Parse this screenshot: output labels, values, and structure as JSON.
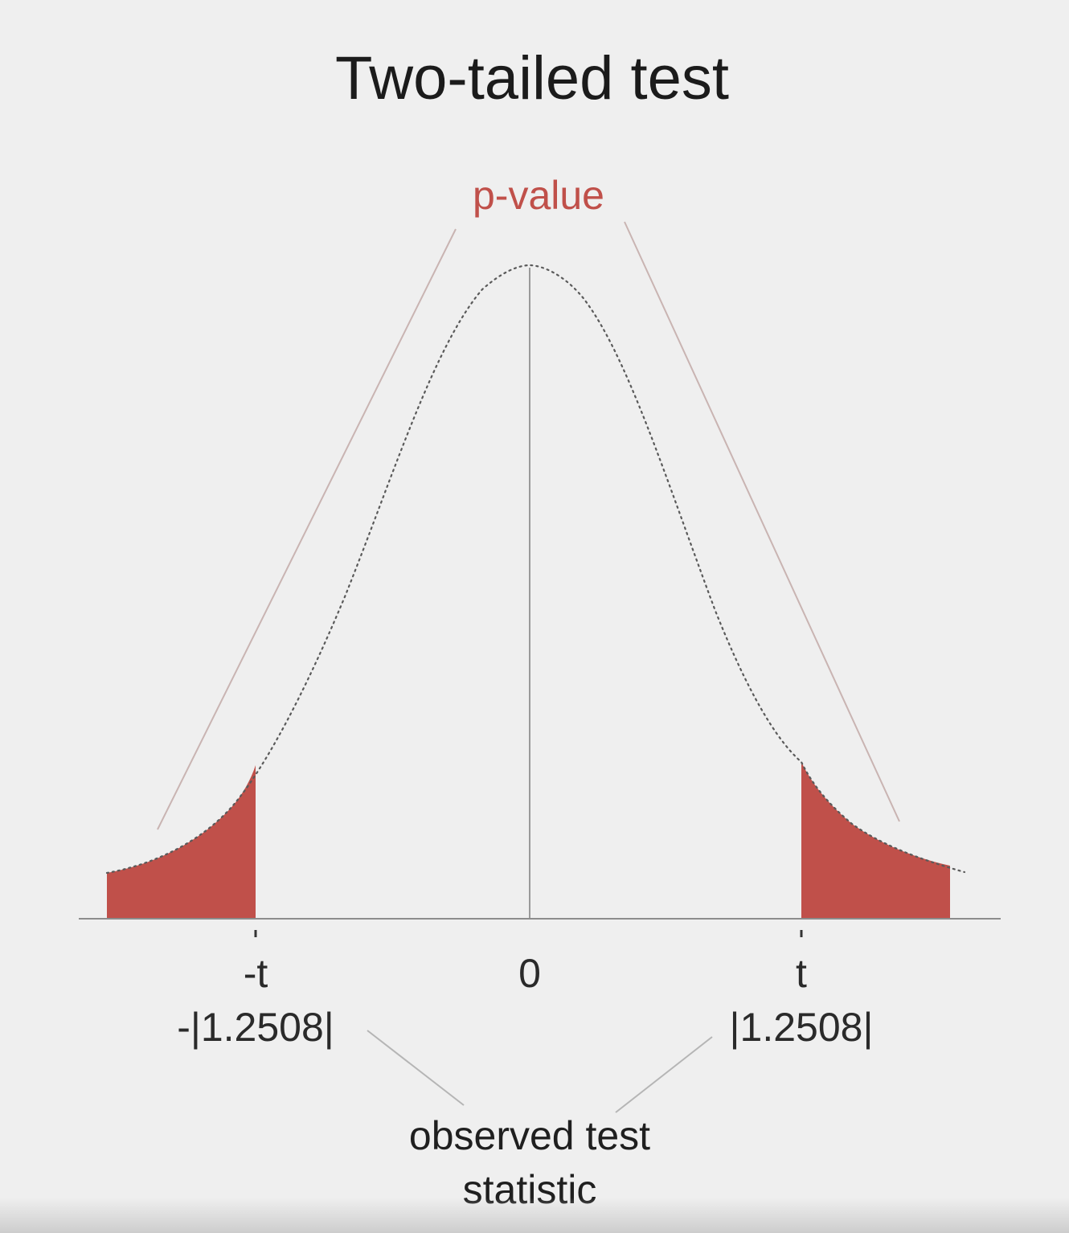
{
  "title": "Two-tailed test",
  "p_value_label": "p-value",
  "axis": {
    "ticks": [
      {
        "id": "neg",
        "symbol": "-t",
        "value_label": "-|1.2508|",
        "x": -1.2508
      },
      {
        "id": "zero",
        "symbol": "0",
        "value_label": "",
        "x": 0
      },
      {
        "id": "pos",
        "symbol": "t",
        "value_label": "|1.2508|",
        "x": 1.2508
      }
    ]
  },
  "caption": {
    "line1": "observed test",
    "line2": "statistic"
  },
  "colors": {
    "tail_fill": "#c0504a",
    "p_value_text": "#c0504a",
    "background": "#efefef"
  }
}
